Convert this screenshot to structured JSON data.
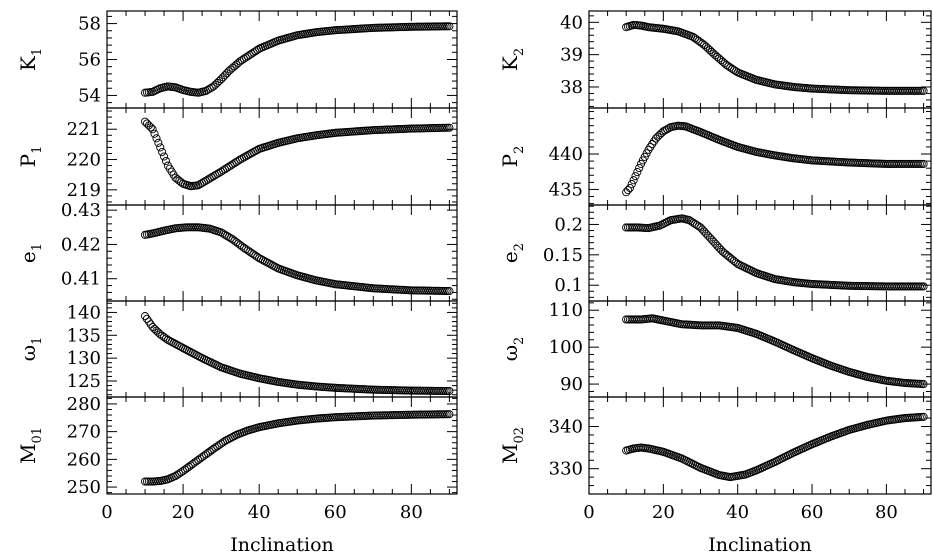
{
  "chart_data": {
    "type": "scatter",
    "xlabel": "Inclination",
    "xlim": [
      0,
      92
    ],
    "xticks": [
      "0",
      "20",
      "40",
      "60",
      "80"
    ],
    "xtick_values": [
      0,
      20,
      40,
      60,
      80
    ],
    "columns": [
      {
        "panels": [
          {
            "ylabel": "K",
            "sub": "1",
            "ylim": [
              53.3,
              58.7
            ],
            "yticks": [
              54,
              56,
              58
            ],
            "tick_labels": [
              "54",
              "56",
              "58"
            ],
            "curve": [
              [
                10,
                54.15
              ],
              [
                12,
                54.2
              ],
              [
                14,
                54.4
              ],
              [
                16,
                54.5
              ],
              [
                18,
                54.45
              ],
              [
                20,
                54.3
              ],
              [
                22,
                54.2
              ],
              [
                24,
                54.15
              ],
              [
                26,
                54.25
              ],
              [
                28,
                54.5
              ],
              [
                30,
                54.9
              ],
              [
                32,
                55.35
              ],
              [
                35,
                55.9
              ],
              [
                40,
                56.6
              ],
              [
                45,
                57.05
              ],
              [
                50,
                57.35
              ],
              [
                55,
                57.52
              ],
              [
                60,
                57.63
              ],
              [
                70,
                57.76
              ],
              [
                80,
                57.82
              ],
              [
                90,
                57.85
              ]
            ]
          },
          {
            "ylabel": "P",
            "sub": "1",
            "ylim": [
              218.5,
              221.7
            ],
            "yticks": [
              219,
              220,
              221
            ],
            "tick_labels": [
              "219",
              "220",
              "221"
            ],
            "curve": [
              [
                10,
                221.25
              ],
              [
                12,
                221.0
              ],
              [
                14,
                220.4
              ],
              [
                16,
                219.8
              ],
              [
                18,
                219.4
              ],
              [
                20,
                219.2
              ],
              [
                22,
                219.12
              ],
              [
                24,
                219.15
              ],
              [
                26,
                219.3
              ],
              [
                30,
                219.6
              ],
              [
                35,
                220.0
              ],
              [
                40,
                220.35
              ],
              [
                45,
                220.55
              ],
              [
                50,
                220.7
              ],
              [
                55,
                220.8
              ],
              [
                60,
                220.88
              ],
              [
                70,
                220.97
              ],
              [
                80,
                221.02
              ],
              [
                90,
                221.05
              ]
            ]
          },
          {
            "ylabel": "e",
            "sub": "1",
            "ylim": [
              0.4035,
              0.4315
            ],
            "yticks": [
              0.41,
              0.42,
              0.43
            ],
            "tick_labels": [
              "0.41",
              "0.42",
              "0.43"
            ],
            "curve": [
              [
                10,
                0.4228
              ],
              [
                12,
                0.4232
              ],
              [
                15,
                0.424
              ],
              [
                18,
                0.4247
              ],
              [
                21,
                0.425
              ],
              [
                24,
                0.425
              ],
              [
                27,
                0.4246
              ],
              [
                30,
                0.4235
              ],
              [
                33,
                0.4215
              ],
              [
                36,
                0.419
              ],
              [
                40,
                0.416
              ],
              [
                45,
                0.413
              ],
              [
                50,
                0.411
              ],
              [
                55,
                0.4095
              ],
              [
                60,
                0.4084
              ],
              [
                70,
                0.4072
              ],
              [
                80,
                0.4066
              ],
              [
                90,
                0.4064
              ]
            ]
          },
          {
            "ylabel": "ω",
            "sub": "1",
            "ylim": [
              121.5,
              142.5
            ],
            "yticks": [
              125,
              130,
              135,
              140
            ],
            "tick_labels": [
              "125",
              "130",
              "135",
              "140"
            ],
            "curve": [
              [
                10,
                139.2
              ],
              [
                11,
                138.0
              ],
              [
                12,
                136.8
              ],
              [
                14,
                135.2
              ],
              [
                16,
                134.0
              ],
              [
                20,
                132.2
              ],
              [
                25,
                130.0
              ],
              [
                30,
                128.0
              ],
              [
                35,
                126.6
              ],
              [
                40,
                125.6
              ],
              [
                45,
                124.8
              ],
              [
                50,
                124.2
              ],
              [
                55,
                123.8
              ],
              [
                60,
                123.5
              ],
              [
                70,
                123.1
              ],
              [
                80,
                122.9
              ],
              [
                90,
                122.8
              ]
            ]
          },
          {
            "ylabel": "M",
            "sub": "01",
            "ylim": [
              247.5,
              282.5
            ],
            "yticks": [
              250,
              260,
              270,
              280
            ],
            "tick_labels": [
              "250",
              "260",
              "270",
              "280"
            ],
            "curve": [
              [
                10,
                252.0
              ],
              [
                12,
                252.0
              ],
              [
                14,
                252.2
              ],
              [
                16,
                252.8
              ],
              [
                18,
                254.0
              ],
              [
                20,
                255.8
              ],
              [
                22,
                257.8
              ],
              [
                25,
                260.8
              ],
              [
                28,
                263.8
              ],
              [
                31,
                266.6
              ],
              [
                34,
                268.8
              ],
              [
                37,
                270.4
              ],
              [
                40,
                271.6
              ],
              [
                45,
                273.0
              ],
              [
                50,
                274.0
              ],
              [
                55,
                274.7
              ],
              [
                60,
                275.2
              ],
              [
                70,
                275.8
              ],
              [
                80,
                276.1
              ],
              [
                90,
                276.3
              ]
            ]
          }
        ]
      },
      {
        "panels": [
          {
            "ylabel": "K",
            "sub": "2",
            "ylim": [
              37.35,
              40.35
            ],
            "yticks": [
              38,
              39,
              40
            ],
            "tick_labels": [
              "38",
              "39",
              "40"
            ],
            "curve": [
              [
                10,
                39.85
              ],
              [
                12,
                39.92
              ],
              [
                14,
                39.9
              ],
              [
                16,
                39.85
              ],
              [
                20,
                39.8
              ],
              [
                24,
                39.72
              ],
              [
                28,
                39.55
              ],
              [
                31,
                39.3
              ],
              [
                34,
                38.98
              ],
              [
                37,
                38.68
              ],
              [
                40,
                38.45
              ],
              [
                45,
                38.22
              ],
              [
                50,
                38.08
              ],
              [
                55,
                38.0
              ],
              [
                60,
                37.95
              ],
              [
                70,
                37.9
              ],
              [
                80,
                37.88
              ],
              [
                90,
                37.88
              ]
            ]
          },
          {
            "ylabel": "P",
            "sub": "2",
            "ylim": [
              432.8,
              446.5
            ],
            "yticks": [
              435,
              440
            ],
            "tick_labels": [
              "435",
              "440"
            ],
            "curve": [
              [
                10,
                434.6
              ],
              [
                11,
                435.2
              ],
              [
                12,
                436.3
              ],
              [
                14,
                438.6
              ],
              [
                16,
                440.6
              ],
              [
                18,
                442.2
              ],
              [
                20,
                443.2
              ],
              [
                22,
                443.8
              ],
              [
                24,
                444.0
              ],
              [
                26,
                443.9
              ],
              [
                30,
                443.1
              ],
              [
                35,
                442.0
              ],
              [
                40,
                441.0
              ],
              [
                45,
                440.3
              ],
              [
                50,
                439.8
              ],
              [
                55,
                439.4
              ],
              [
                60,
                439.1
              ],
              [
                70,
                438.8
              ],
              [
                80,
                438.6
              ],
              [
                90,
                438.6
              ]
            ]
          },
          {
            "ylabel": "e",
            "sub": "2",
            "ylim": [
              0.074,
              0.232
            ],
            "yticks": [
              0.1,
              0.15,
              0.2
            ],
            "tick_labels": [
              "0.1",
              "0.15",
              "0.2"
            ],
            "curve": [
              [
                10,
                0.195
              ],
              [
                13,
                0.195
              ],
              [
                16,
                0.194
              ],
              [
                19,
                0.198
              ],
              [
                22,
                0.207
              ],
              [
                25,
                0.21
              ],
              [
                27,
                0.207
              ],
              [
                30,
                0.195
              ],
              [
                33,
                0.175
              ],
              [
                36,
                0.155
              ],
              [
                40,
                0.135
              ],
              [
                45,
                0.12
              ],
              [
                50,
                0.11
              ],
              [
                55,
                0.105
              ],
              [
                60,
                0.102
              ],
              [
                70,
                0.099
              ],
              [
                80,
                0.098
              ],
              [
                90,
                0.098
              ]
            ]
          },
          {
            "ylabel": "ω",
            "sub": "2",
            "ylim": [
              86.5,
              112.5
            ],
            "yticks": [
              90,
              100,
              110
            ],
            "tick_labels": [
              "90",
              "100",
              "110"
            ],
            "curve": [
              [
                10,
                107.5
              ],
              [
                14,
                107.5
              ],
              [
                17,
                107.8
              ],
              [
                20,
                107.2
              ],
              [
                25,
                106.2
              ],
              [
                30,
                105.9
              ],
              [
                35,
                105.9
              ],
              [
                40,
                105.2
              ],
              [
                45,
                103.6
              ],
              [
                50,
                101.5
              ],
              [
                55,
                99.2
              ],
              [
                60,
                97.0
              ],
              [
                65,
                95.0
              ],
              [
                70,
                93.3
              ],
              [
                75,
                91.9
              ],
              [
                80,
                90.9
              ],
              [
                85,
                90.3
              ],
              [
                90,
                90.0
              ]
            ]
          },
          {
            "ylabel": "M",
            "sub": "02",
            "ylim": [
              324.0,
              347.0
            ],
            "yticks": [
              330,
              340
            ],
            "tick_labels": [
              "330",
              "340"
            ],
            "curve": [
              [
                10,
                334.3
              ],
              [
                12,
                334.8
              ],
              [
                14,
                335.0
              ],
              [
                16,
                334.8
              ],
              [
                20,
                334.0
              ],
              [
                25,
                332.4
              ],
              [
                30,
                330.2
              ],
              [
                35,
                328.5
              ],
              [
                38,
                328.0
              ],
              [
                42,
                328.6
              ],
              [
                45,
                329.6
              ],
              [
                50,
                331.6
              ],
              [
                55,
                333.8
              ],
              [
                60,
                335.8
              ],
              [
                65,
                337.6
              ],
              [
                70,
                339.2
              ],
              [
                75,
                340.4
              ],
              [
                80,
                341.4
              ],
              [
                85,
                342.0
              ],
              [
                90,
                342.3
              ]
            ]
          }
        ]
      }
    ]
  }
}
